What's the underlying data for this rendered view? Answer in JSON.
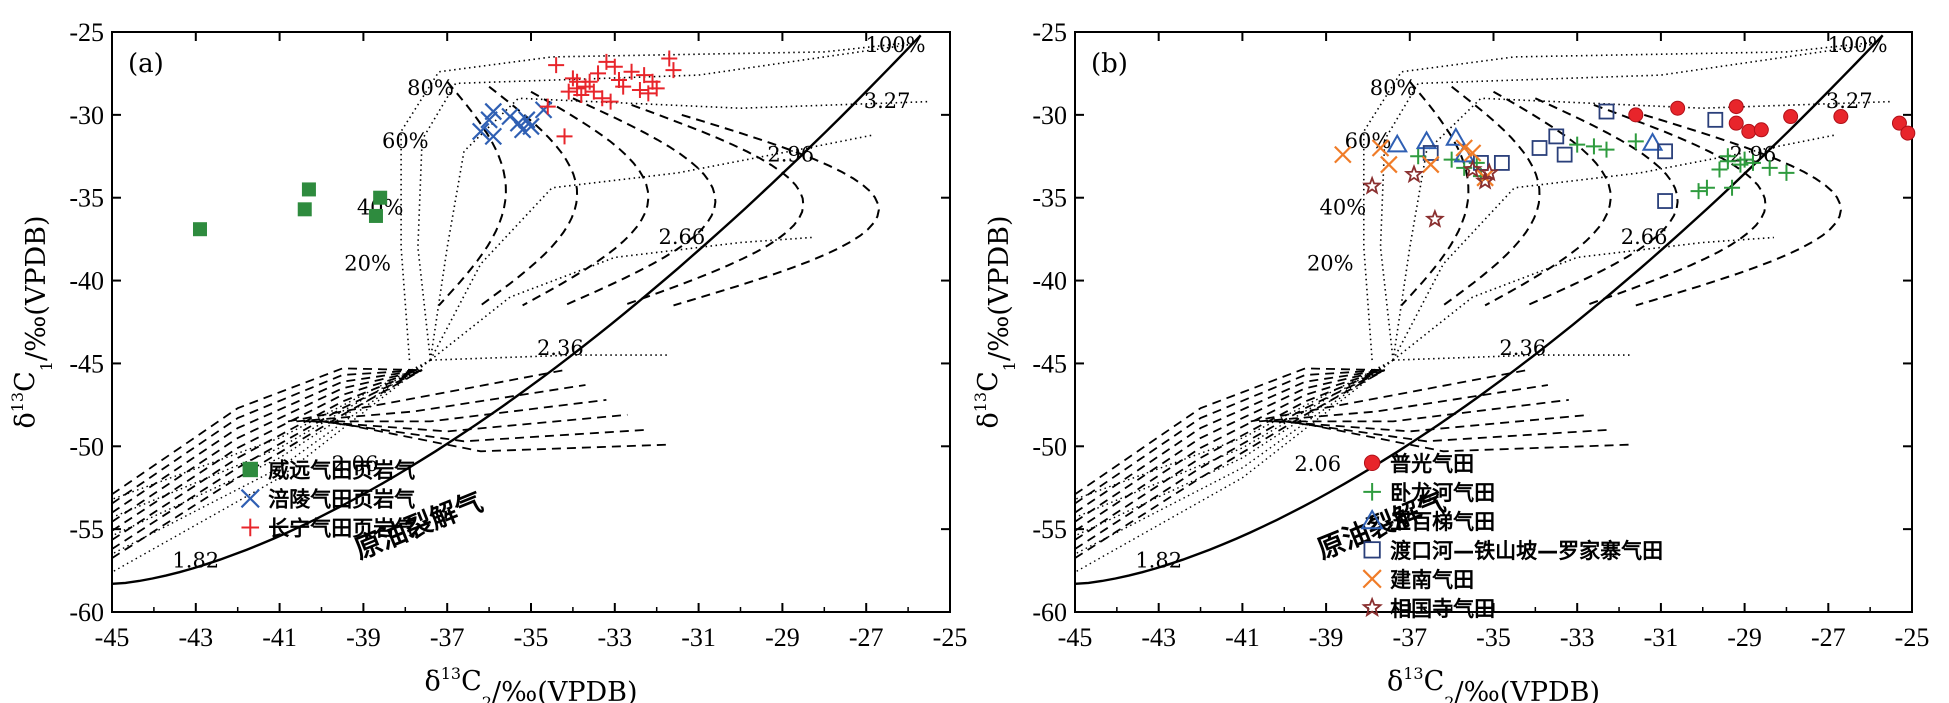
{
  "chart_data": [
    {
      "type": "scatter",
      "panel_label": "(a)",
      "xlabel_main": "δ",
      "xlabel_sup": "13",
      "xlabel_rest": "C",
      "xlabel_sub": "2",
      "xlabel_tail": "/‰(VPDB)",
      "ylabel_main": "δ",
      "ylabel_sup": "13",
      "ylabel_rest": "C",
      "ylabel_sub": "1",
      "ylabel_tail": "/‰(VPDB)",
      "xlim": [
        -45,
        -25
      ],
      "ylim": [
        -60,
        -25
      ],
      "xticks": [
        -45,
        -43,
        -41,
        -39,
        -37,
        -35,
        -33,
        -31,
        -29,
        -27,
        -25
      ],
      "yticks": [
        -25,
        -30,
        -35,
        -40,
        -45,
        -50,
        -55,
        -60
      ],
      "legend_position": "bottom-right",
      "curve_labels": [
        {
          "text": "100%",
          "x": -26.3,
          "y": -26.2
        },
        {
          "text": "3.27",
          "x": -26.5,
          "y": -29.6
        },
        {
          "text": "2.96",
          "x": -28.8,
          "y": -32.8
        },
        {
          "text": "2.66",
          "x": -31.4,
          "y": -37.8
        },
        {
          "text": "2.36",
          "x": -34.3,
          "y": -44.5
        },
        {
          "text": "2.06",
          "x": -39.2,
          "y": -51.5
        },
        {
          "text": "1.82",
          "x": -43.0,
          "y": -57.3
        },
        {
          "text": "80%",
          "x": -37.4,
          "y": -28.8
        },
        {
          "text": "60%",
          "x": -38.0,
          "y": -32.0
        },
        {
          "text": "40%",
          "x": -38.6,
          "y": -36.0
        },
        {
          "text": "20%",
          "x": -38.9,
          "y": -39.4
        }
      ],
      "annotation": "原油裂解气",
      "series": [
        {
          "name": "威远气田页岩气",
          "marker": "square",
          "color": "#2e8b3e",
          "points": [
            [
              -42.9,
              -36.9
            ],
            [
              -40.3,
              -34.5
            ],
            [
              -40.4,
              -35.7
            ],
            [
              -38.6,
              -35.0
            ],
            [
              -38.7,
              -36.1
            ]
          ]
        },
        {
          "name": "涪陵气田页岩气",
          "marker": "x",
          "color": "#2f5fb3",
          "points": [
            [
              -35.9,
              -29.8
            ],
            [
              -36.0,
              -30.3
            ],
            [
              -36.2,
              -31.0
            ],
            [
              -35.9,
              -31.3
            ],
            [
              -35.3,
              -30.5
            ],
            [
              -35.2,
              -30.9
            ],
            [
              -35.1,
              -30.3
            ],
            [
              -35.0,
              -30.7
            ],
            [
              -34.7,
              -29.7
            ],
            [
              -35.5,
              -30.1
            ]
          ]
        },
        {
          "name": "长宁气田页岩气",
          "marker": "plus",
          "color": "#e8252b",
          "points": [
            [
              -34.6,
              -29.5
            ],
            [
              -34.4,
              -27.0
            ],
            [
              -34.0,
              -27.8
            ],
            [
              -33.9,
              -28.4
            ],
            [
              -33.8,
              -28.8
            ],
            [
              -33.7,
              -28.3
            ],
            [
              -33.6,
              -28.0
            ],
            [
              -33.5,
              -28.6
            ],
            [
              -33.4,
              -27.5
            ],
            [
              -33.3,
              -29.0
            ],
            [
              -33.2,
              -26.8
            ],
            [
              -33.0,
              -27.1
            ],
            [
              -32.9,
              -27.9
            ],
            [
              -32.8,
              -28.3
            ],
            [
              -32.6,
              -27.4
            ],
            [
              -32.3,
              -27.6
            ],
            [
              -32.2,
              -28.7
            ],
            [
              -32.1,
              -28.0
            ],
            [
              -32.0,
              -28.4
            ],
            [
              -31.7,
              -26.6
            ],
            [
              -31.6,
              -27.3
            ],
            [
              -34.2,
              -31.3
            ],
            [
              -33.9,
              -28.0
            ],
            [
              -34.1,
              -28.6
            ],
            [
              -33.1,
              -29.2
            ],
            [
              -32.4,
              -28.5
            ]
          ]
        }
      ]
    },
    {
      "type": "scatter",
      "panel_label": "(b)",
      "xlabel_main": "δ",
      "xlabel_sup": "13",
      "xlabel_rest": "C",
      "xlabel_sub": "2",
      "xlabel_tail": "/‰(VPDB)",
      "ylabel_main": "δ",
      "ylabel_sup": "13",
      "ylabel_rest": "C",
      "ylabel_sub": "1",
      "ylabel_tail": "/‰(VPDB)",
      "xlim": [
        -45,
        -25
      ],
      "ylim": [
        -60,
        -25
      ],
      "xticks": [
        -45,
        -43,
        -41,
        -39,
        -37,
        -35,
        -33,
        -31,
        -29,
        -27,
        -25
      ],
      "yticks": [
        -25,
        -30,
        -35,
        -40,
        -45,
        -50,
        -55,
        -60
      ],
      "legend_position": "bottom-right",
      "curve_labels": [
        {
          "text": "100%",
          "x": -26.3,
          "y": -26.2
        },
        {
          "text": "3.27",
          "x": -26.5,
          "y": -29.6
        },
        {
          "text": "2.96",
          "x": -28.8,
          "y": -32.8
        },
        {
          "text": "2.66",
          "x": -31.4,
          "y": -37.8
        },
        {
          "text": "2.36",
          "x": -34.3,
          "y": -44.5
        },
        {
          "text": "2.06",
          "x": -39.2,
          "y": -51.5
        },
        {
          "text": "1.82",
          "x": -43.0,
          "y": -57.3
        },
        {
          "text": "80%",
          "x": -37.4,
          "y": -28.8
        },
        {
          "text": "60%",
          "x": -38.0,
          "y": -32.0
        },
        {
          "text": "40%",
          "x": -38.6,
          "y": -36.0
        },
        {
          "text": "20%",
          "x": -38.9,
          "y": -39.4
        }
      ],
      "annotation": "原油裂解气",
      "series": [
        {
          "name": "普光气田",
          "marker": "circle",
          "color": "#e8252b",
          "points": [
            [
              -31.6,
              -30.0
            ],
            [
              -30.6,
              -29.6
            ],
            [
              -29.2,
              -29.5
            ],
            [
              -29.2,
              -30.5
            ],
            [
              -28.9,
              -31.0
            ],
            [
              -28.6,
              -30.9
            ],
            [
              -27.9,
              -30.1
            ],
            [
              -26.7,
              -30.1
            ],
            [
              -25.3,
              -30.5
            ],
            [
              -25.1,
              -31.1
            ]
          ]
        },
        {
          "name": "卧龙河气田",
          "marker": "plus",
          "color": "#2e9b3e",
          "points": [
            [
              -36.8,
              -32.5
            ],
            [
              -36.0,
              -32.7
            ],
            [
              -35.7,
              -33.2
            ],
            [
              -35.4,
              -32.9
            ],
            [
              -35.3,
              -33.7
            ],
            [
              -33.0,
              -31.8
            ],
            [
              -32.6,
              -31.9
            ],
            [
              -32.3,
              -32.1
            ],
            [
              -31.6,
              -31.6
            ],
            [
              -30.1,
              -34.6
            ],
            [
              -29.9,
              -34.4
            ],
            [
              -29.6,
              -33.3
            ],
            [
              -29.4,
              -32.5
            ],
            [
              -29.4,
              -32.8
            ],
            [
              -29.1,
              -33.0
            ],
            [
              -29.0,
              -32.7
            ],
            [
              -28.8,
              -32.9
            ],
            [
              -29.3,
              -34.4
            ],
            [
              -28.4,
              -33.2
            ],
            [
              -28.0,
              -33.5
            ]
          ]
        },
        {
          "name": "五百梯气田",
          "marker": "triangle",
          "color": "#2f5fb3",
          "points": [
            [
              -37.3,
              -31.8
            ],
            [
              -36.6,
              -31.6
            ],
            [
              -35.9,
              -31.4
            ],
            [
              -35.7,
              -32.4
            ],
            [
              -31.2,
              -31.7
            ]
          ]
        },
        {
          "name": "渡口河—铁山坡—罗家寨气田",
          "marker": "opensquare",
          "color": "#2a3f7a",
          "points": [
            [
              -36.5,
              -32.3
            ],
            [
              -35.3,
              -32.9
            ],
            [
              -34.8,
              -32.9
            ],
            [
              -33.9,
              -32.0
            ],
            [
              -33.5,
              -31.3
            ],
            [
              -33.3,
              -32.4
            ],
            [
              -32.3,
              -29.8
            ],
            [
              -30.9,
              -32.2
            ],
            [
              -30.9,
              -35.2
            ],
            [
              -29.7,
              -30.3
            ]
          ]
        },
        {
          "name": "建南气田",
          "marker": "x",
          "color": "#f07c28",
          "points": [
            [
              -38.6,
              -32.4
            ],
            [
              -37.7,
              -32.0
            ],
            [
              -37.5,
              -33.0
            ],
            [
              -36.5,
              -33.0
            ],
            [
              -35.7,
              -32.0
            ],
            [
              -35.5,
              -32.3
            ],
            [
              -35.2,
              -33.8
            ]
          ]
        },
        {
          "name": "相国寺气田",
          "marker": "star",
          "color": "#8a2f2f",
          "points": [
            [
              -37.9,
              -34.3
            ],
            [
              -36.9,
              -33.6
            ],
            [
              -36.4,
              -36.3
            ],
            [
              -35.5,
              -33.3
            ],
            [
              -35.2,
              -34.0
            ],
            [
              -35.1,
              -33.5
            ]
          ]
        }
      ]
    }
  ]
}
